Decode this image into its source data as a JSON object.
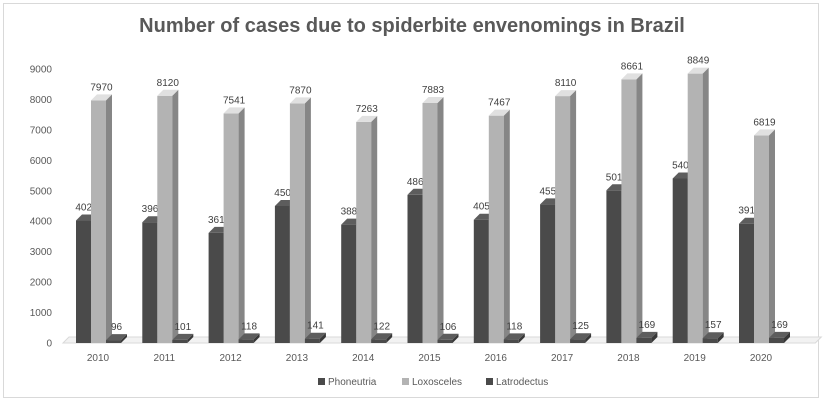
{
  "chart_data": {
    "type": "bar",
    "title": "Number of cases due to spiderbite envenomings in Brazil",
    "xlabel": "",
    "ylabel": "",
    "categories": [
      "2010",
      "2011",
      "2012",
      "2013",
      "2014",
      "2015",
      "2016",
      "2017",
      "2018",
      "2019",
      "2020"
    ],
    "ylim": [
      0,
      9000
    ],
    "yticks": [
      0,
      1000,
      2000,
      3000,
      4000,
      5000,
      6000,
      7000,
      8000,
      9000
    ],
    "grid": false,
    "legend": "bottom",
    "series": [
      {
        "name": "Phoneutria",
        "color": "#4a4a4a",
        "values": [
          4022,
          3968,
          3616,
          4502,
          3888,
          4868,
          4050,
          4554,
          5016,
          5405,
          3918
        ]
      },
      {
        "name": "Loxosceles",
        "color": "#b3b3b3",
        "values": [
          7970,
          8120,
          7541,
          7870,
          7263,
          7883,
          7467,
          8110,
          8661,
          8849,
          6819
        ]
      },
      {
        "name": "Latrodectus",
        "color": "#4a4a4a",
        "values": [
          96,
          101,
          118,
          141,
          122,
          106,
          118,
          125,
          169,
          157,
          169
        ]
      }
    ]
  }
}
